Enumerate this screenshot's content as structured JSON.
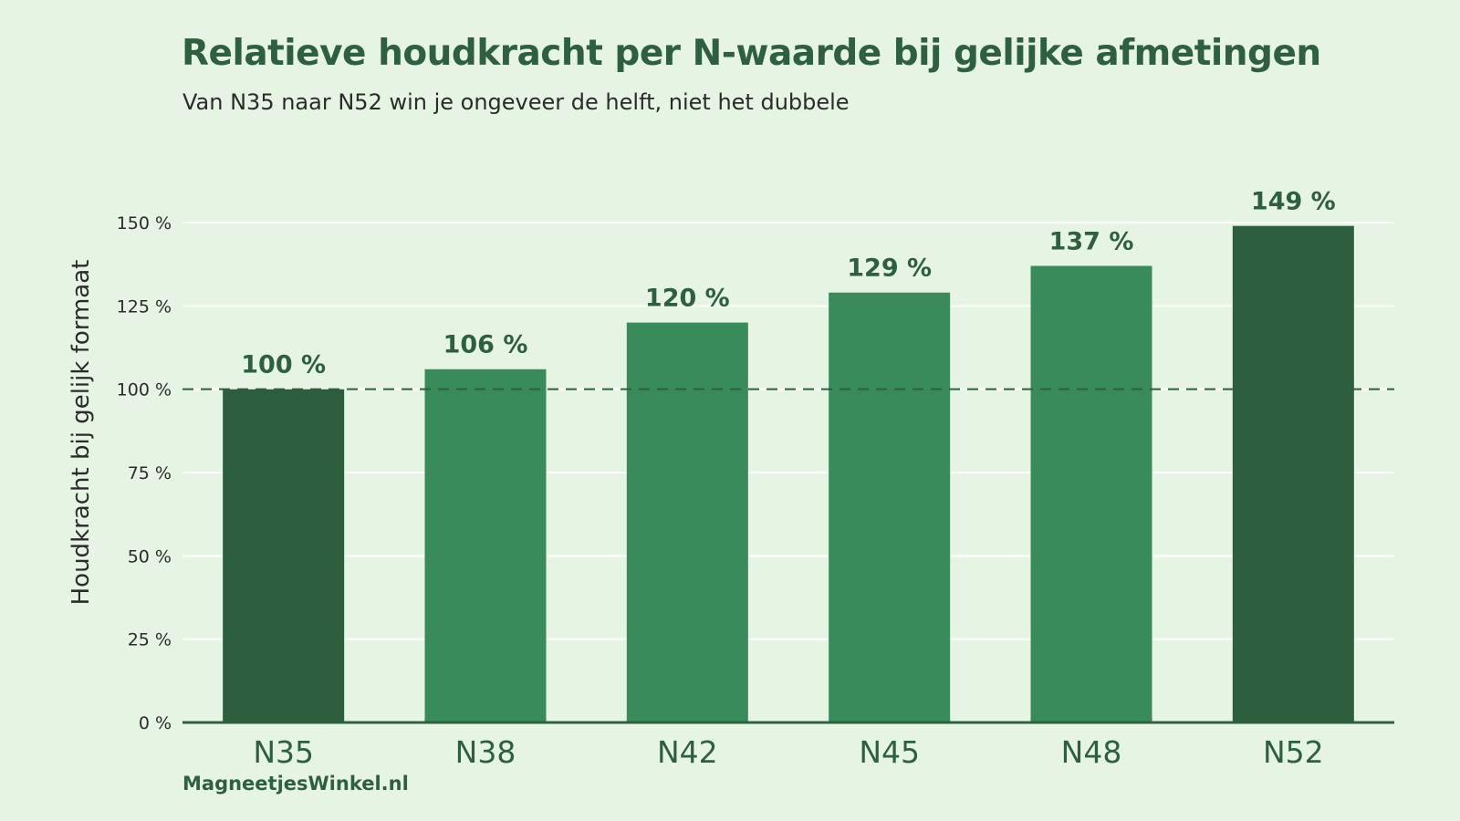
{
  "chart_data": {
    "type": "bar",
    "title": "Relatieve houdkracht per N-waarde bij gelijke afmetingen",
    "subtitle": "Van N35 naar N52 win je ongeveer de helft, niet het dubbele",
    "ylabel": "Houdkracht bij gelijk formaat",
    "xlabel": "",
    "categories": [
      "N35",
      "N38",
      "N42",
      "N45",
      "N48",
      "N52"
    ],
    "values": [
      100,
      106,
      120,
      129,
      137,
      149
    ],
    "data_labels": [
      "100 %",
      "106 %",
      "120 %",
      "129 %",
      "137 %",
      "149 %"
    ],
    "ylim": [
      0,
      150
    ],
    "yticks": [
      0,
      25,
      50,
      75,
      100,
      125,
      150
    ],
    "ytick_labels": [
      "0 %",
      "25 %",
      "50 %",
      "75 %",
      "100 %",
      "125 %",
      "150 %"
    ],
    "reference_line": 100,
    "grid": true,
    "colors": {
      "highlight": "#2d5e3e",
      "bar": "#3a8b5c",
      "background": "#e6f5e3",
      "grid": "#ffffff"
    },
    "highlighted_categories": [
      "N35",
      "N52"
    ]
  },
  "footer": {
    "brand": "MagneetjesWinkel.nl"
  }
}
